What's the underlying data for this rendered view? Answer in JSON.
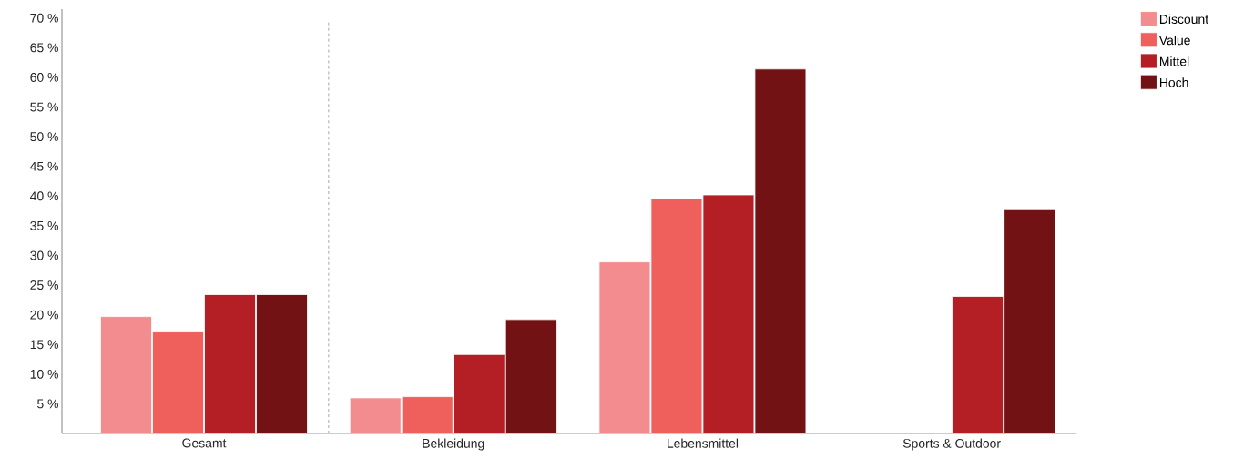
{
  "chart_data": {
    "type": "bar",
    "categories": [
      "Gesamt",
      "Bekleidung",
      "Lebensmittel",
      "Sports & Outdoor"
    ],
    "series": [
      {
        "name": "Discount",
        "color": "#f38c8f",
        "values": [
          19.7,
          6.0,
          28.9,
          null
        ]
      },
      {
        "name": "Value",
        "color": "#ef5f5c",
        "values": [
          17.1,
          6.2,
          39.6,
          null
        ]
      },
      {
        "name": "Mittel",
        "color": "#b31f25",
        "values": [
          23.4,
          13.3,
          40.2,
          23.1
        ]
      },
      {
        "name": "Hoch",
        "color": "#731214",
        "values": [
          23.4,
          19.2,
          61.4,
          37.7
        ]
      }
    ],
    "ylim": [
      0,
      71.5
    ],
    "yticks": [
      {
        "value": 5,
        "label": "5 %"
      },
      {
        "value": 10,
        "label": "10 %"
      },
      {
        "value": 15,
        "label": "15 %"
      },
      {
        "value": 20,
        "label": "20 %"
      },
      {
        "value": 25,
        "label": "25 %"
      },
      {
        "value": 30,
        "label": "30 %"
      },
      {
        "value": 35,
        "label": "35 %"
      },
      {
        "value": 40,
        "label": "40 %"
      },
      {
        "value": 45,
        "label": "45 %"
      },
      {
        "value": 50,
        "label": "50 %"
      },
      {
        "value": 55,
        "label": "55 %"
      },
      {
        "value": 60,
        "label": "60 %"
      },
      {
        "value": 65,
        "label": "65 %"
      },
      {
        "value": 70,
        "label": "70 %"
      }
    ],
    "grid": false,
    "legend": "top right"
  }
}
